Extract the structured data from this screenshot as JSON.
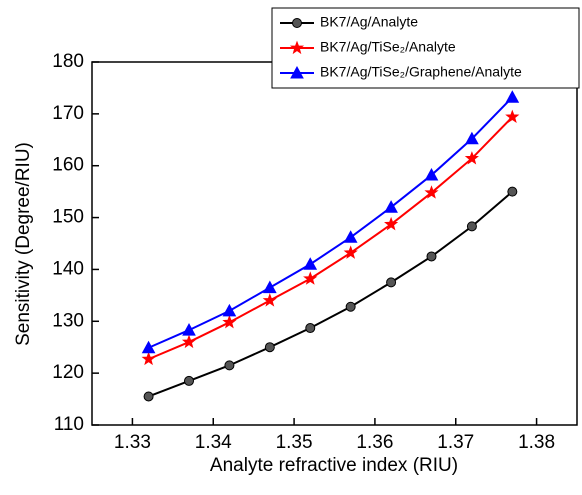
{
  "chart_data": {
    "type": "line",
    "x_label": "Analyte refractive index (RIU)",
    "y_label": "Sensitivity (Degree/RIU)",
    "x": [
      1.332,
      1.337,
      1.342,
      1.347,
      1.352,
      1.357,
      1.362,
      1.367,
      1.372,
      1.377
    ],
    "series": [
      {
        "name": "BK7/Ag/Analyte",
        "color": "#000000",
        "marker": "circle",
        "values": [
          115.5,
          118.5,
          121.5,
          125,
          128.7,
          132.8,
          137.5,
          142.5,
          148.3,
          155
        ]
      },
      {
        "name": "BK7/Ag/TiSe₂/Analyte",
        "color": "#ff0000",
        "marker": "star",
        "values": [
          122.7,
          126,
          129.8,
          134,
          138.2,
          143.2,
          148.7,
          154.8,
          161.4,
          169.4
        ]
      },
      {
        "name": "BK7/Ag/TiSe₂/Graphene/Analyte",
        "color": "#0000ff",
        "marker": "triangle",
        "values": [
          124.9,
          128.3,
          132,
          136.5,
          141,
          146.2,
          152,
          158.2,
          165.2,
          173.2
        ]
      }
    ],
    "xlim": [
      1.325,
      1.385
    ],
    "xticks": [
      1.33,
      1.34,
      1.35,
      1.36,
      1.37,
      1.38
    ],
    "ylim": [
      110,
      180
    ],
    "yticks": [
      110,
      120,
      130,
      140,
      150,
      160,
      170,
      180
    ],
    "legend": "top-right"
  }
}
